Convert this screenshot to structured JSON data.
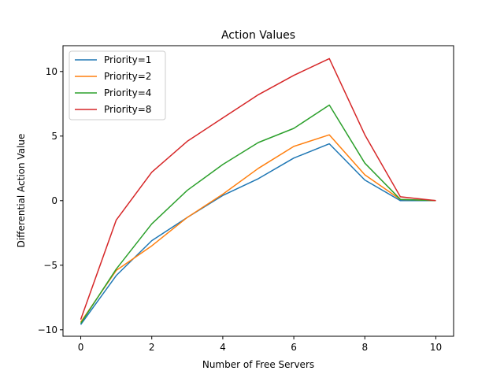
{
  "chart_data": {
    "type": "line",
    "title": "Action Values",
    "xlabel": "Number of Free Servers",
    "ylabel": "Differential Action Value",
    "x": [
      0,
      1,
      2,
      3,
      4,
      5,
      6,
      7,
      8,
      9,
      10
    ],
    "xlim": [
      -0.5,
      10.5
    ],
    "ylim": [
      -10.5,
      12.0
    ],
    "xticks": [
      0,
      2,
      4,
      6,
      8,
      10
    ],
    "yticks": [
      -10,
      -5,
      0,
      5,
      10
    ],
    "xtick_labels": [
      "0",
      "2",
      "4",
      "6",
      "8",
      "10"
    ],
    "ytick_labels": [
      "−10",
      "−5",
      "0",
      "5",
      "10"
    ],
    "grid": false,
    "legend_position": "top-left",
    "series": [
      {
        "name": "Priority=1",
        "color": "#1f77b4",
        "values": [
          -9.6,
          -5.8,
          -3.1,
          -1.3,
          0.4,
          1.7,
          3.3,
          4.4,
          1.6,
          0.0,
          0.0
        ]
      },
      {
        "name": "Priority=2",
        "color": "#ff7f0e",
        "values": [
          -9.4,
          -5.4,
          -3.5,
          -1.3,
          0.5,
          2.5,
          4.2,
          5.1,
          2.0,
          0.1,
          0.0
        ]
      },
      {
        "name": "Priority=4",
        "color": "#2ca02c",
        "values": [
          -9.5,
          -5.3,
          -1.8,
          0.8,
          2.8,
          4.5,
          5.6,
          7.4,
          2.9,
          0.1,
          0.0
        ]
      },
      {
        "name": "Priority=8",
        "color": "#d62728",
        "values": [
          -9.2,
          -1.5,
          2.2,
          4.6,
          6.4,
          8.2,
          9.7,
          11.0,
          5.1,
          0.3,
          0.0
        ]
      }
    ]
  }
}
